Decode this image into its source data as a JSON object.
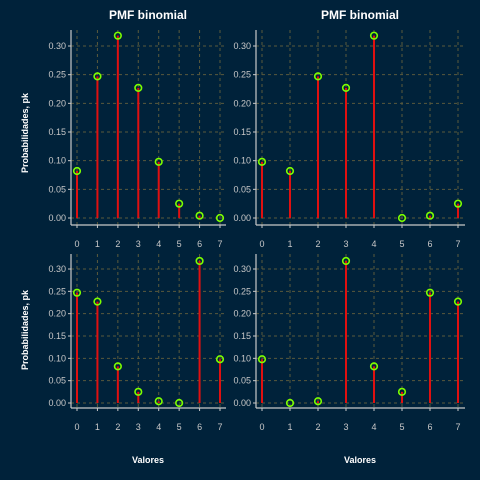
{
  "chart_data": [
    {
      "type": "stem",
      "title": "PMF binomial",
      "xlabel": "",
      "ylabel": "Probabilidades, pk",
      "x": [
        0,
        1,
        2,
        3,
        4,
        5,
        6,
        7
      ],
      "values": [
        0.082,
        0.247,
        0.318,
        0.227,
        0.098,
        0.025,
        0.004,
        0.0
      ],
      "xlim": [
        0,
        7
      ],
      "ylim": [
        0,
        0.3
      ],
      "x_ticks": [
        "0",
        "1",
        "2",
        "3",
        "4",
        "5",
        "6",
        "7"
      ],
      "y_ticks": [
        "0.00",
        "0.05",
        "0.10",
        "0.15",
        "0.20",
        "0.25",
        "0.30"
      ],
      "grid": true,
      "stem_color": "#e01010",
      "marker_color": "#7cff00"
    },
    {
      "type": "stem",
      "title": "PMF binomial",
      "xlabel": "",
      "ylabel": "",
      "x": [
        0,
        1,
        2,
        3,
        4,
        5,
        6,
        7
      ],
      "values": [
        0.098,
        0.082,
        0.247,
        0.227,
        0.318,
        0.0,
        0.004,
        0.025
      ],
      "xlim": [
        0,
        7
      ],
      "ylim": [
        0,
        0.3
      ],
      "x_ticks": [
        "0",
        "1",
        "2",
        "3",
        "4",
        "5",
        "6",
        "7"
      ],
      "y_ticks": [
        "0.00",
        "0.05",
        "0.10",
        "0.15",
        "0.20",
        "0.25",
        "0.30"
      ],
      "grid": true,
      "stem_color": "#e01010",
      "marker_color": "#7cff00"
    },
    {
      "type": "stem",
      "title": "",
      "xlabel": "Valores",
      "ylabel": "Probabilidades, pk",
      "x": [
        0,
        1,
        2,
        3,
        4,
        5,
        6,
        7
      ],
      "values": [
        0.247,
        0.227,
        0.082,
        0.025,
        0.004,
        0.0,
        0.318,
        0.098
      ],
      "xlim": [
        0,
        7
      ],
      "ylim": [
        0,
        0.3
      ],
      "x_ticks": [
        "0",
        "1",
        "2",
        "3",
        "4",
        "5",
        "6",
        "7"
      ],
      "y_ticks": [
        "0.00",
        "0.05",
        "0.10",
        "0.15",
        "0.20",
        "0.25",
        "0.30"
      ],
      "grid": true,
      "stem_color": "#e01010",
      "marker_color": "#7cff00"
    },
    {
      "type": "stem",
      "title": "",
      "xlabel": "Valores",
      "ylabel": "",
      "x": [
        0,
        1,
        2,
        3,
        4,
        5,
        6,
        7
      ],
      "values": [
        0.098,
        0.0,
        0.004,
        0.318,
        0.082,
        0.025,
        0.247,
        0.227
      ],
      "xlim": [
        0,
        7
      ],
      "ylim": [
        0,
        0.3
      ],
      "x_ticks": [
        "0",
        "1",
        "2",
        "3",
        "4",
        "5",
        "6",
        "7"
      ],
      "y_ticks": [
        "0.00",
        "0.05",
        "0.10",
        "0.15",
        "0.20",
        "0.25",
        "0.30"
      ],
      "grid": true,
      "stem_color": "#e01010",
      "marker_color": "#7cff00"
    }
  ],
  "colors": {
    "background": "#00223a",
    "grid": "#5a5a3c",
    "axis": "#c8c8c8"
  }
}
